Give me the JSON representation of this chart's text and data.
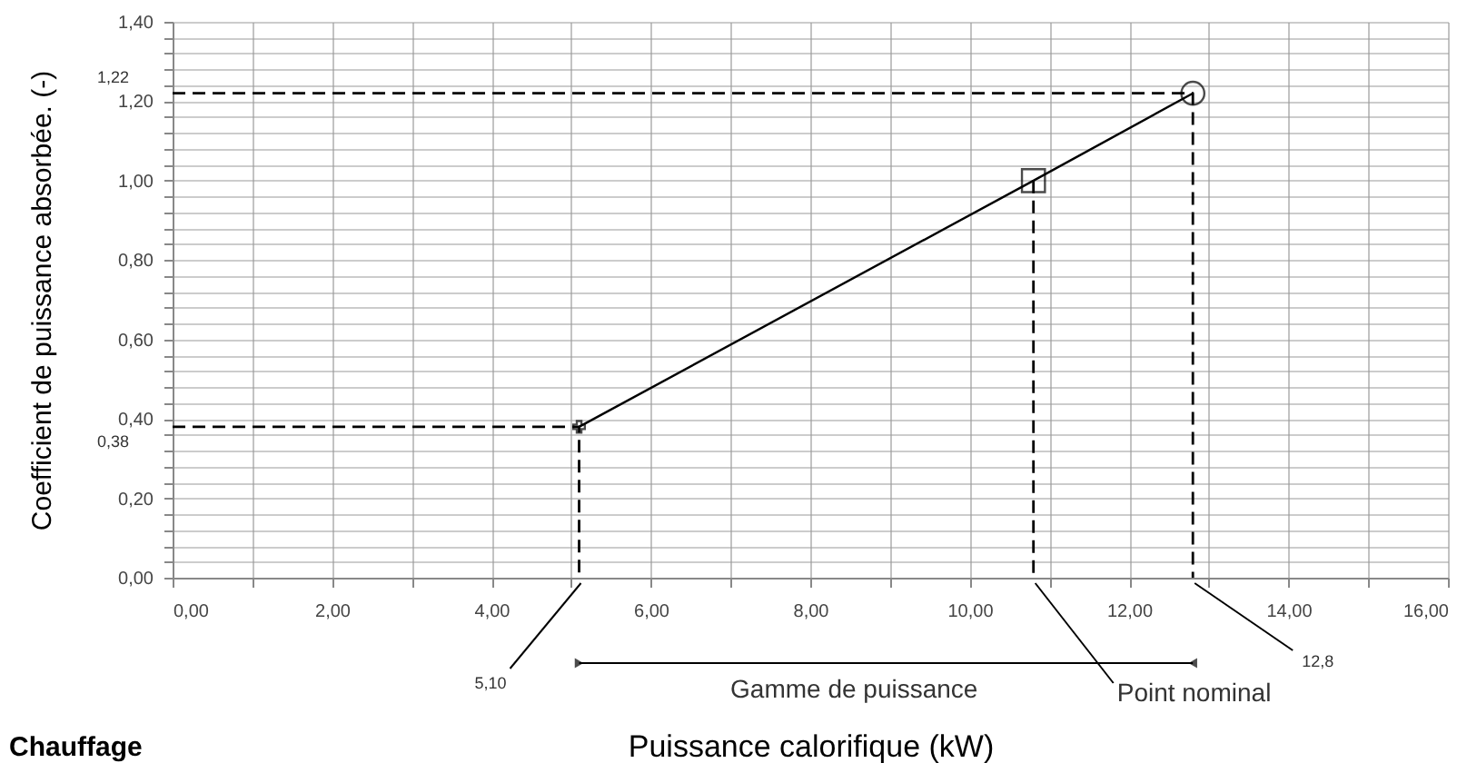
{
  "chart_data": {
    "type": "line",
    "xlabel": "Puissance calorifique (kW)",
    "ylabel": "Coefficient de puissance absorbée. (-)",
    "xlim": [
      0,
      16
    ],
    "ylim": [
      0,
      1.4
    ],
    "xticks": [
      {
        "value": 0,
        "label": "0,00"
      },
      {
        "value": 1,
        "label": null
      },
      {
        "value": 2,
        "label": "2,00"
      },
      {
        "value": 3,
        "label": null
      },
      {
        "value": 4,
        "label": "4,00"
      },
      {
        "value": 5,
        "label": null
      },
      {
        "value": 6,
        "label": "6,00"
      },
      {
        "value": 7,
        "label": null
      },
      {
        "value": 8,
        "label": "8,00"
      },
      {
        "value": 9,
        "label": null
      },
      {
        "value": 10,
        "label": "10,00"
      },
      {
        "value": 11,
        "label": null
      },
      {
        "value": 12,
        "label": "12,00"
      },
      {
        "value": 13,
        "label": null
      },
      {
        "value": 14,
        "label": "14,00"
      },
      {
        "value": 15,
        "label": null
      },
      {
        "value": 16,
        "label": "16,00"
      }
    ],
    "yticks": [
      {
        "value": 0,
        "label": "0,00"
      },
      {
        "value": 0.04,
        "label": null
      },
      {
        "value": 0.08,
        "label": null
      },
      {
        "value": 0.12,
        "label": null
      },
      {
        "value": 0.16,
        "label": null
      },
      {
        "value": 0.2,
        "label": "0,20"
      },
      {
        "value": 0.24,
        "label": null
      },
      {
        "value": 0.28,
        "label": null
      },
      {
        "value": 0.32,
        "label": null
      },
      {
        "value": 0.36,
        "label": null
      },
      {
        "value": 0.4,
        "label": "0,40"
      },
      {
        "value": 0.44,
        "label": null
      },
      {
        "value": 0.48,
        "label": null
      },
      {
        "value": 0.52,
        "label": null
      },
      {
        "value": 0.56,
        "label": null
      },
      {
        "value": 0.6,
        "label": "0,60"
      },
      {
        "value": 0.64,
        "label": null
      },
      {
        "value": 0.68,
        "label": null
      },
      {
        "value": 0.72,
        "label": null
      },
      {
        "value": 0.76,
        "label": null
      },
      {
        "value": 0.8,
        "label": "0,80"
      },
      {
        "value": 0.84,
        "label": null
      },
      {
        "value": 0.88,
        "label": null
      },
      {
        "value": 0.92,
        "label": null
      },
      {
        "value": 0.96,
        "label": null
      },
      {
        "value": 1,
        "label": "1,00"
      },
      {
        "value": 1.04,
        "label": null
      },
      {
        "value": 1.08,
        "label": null
      },
      {
        "value": 1.12,
        "label": null
      },
      {
        "value": 1.16,
        "label": null
      },
      {
        "value": 1.2,
        "label": "1,20"
      },
      {
        "value": 1.24,
        "label": null
      },
      {
        "value": 1.28,
        "label": null
      },
      {
        "value": 1.32,
        "label": null
      },
      {
        "value": 1.36,
        "label": null
      },
      {
        "value": 1.4,
        "label": "1,40"
      }
    ],
    "grid": true,
    "series": [
      {
        "color": "#000000",
        "x": [
          5.1,
          10.8,
          12.8
        ],
        "values": [
          0.38,
          1.0,
          1.22
        ]
      },
      {
        "type": "scatter",
        "marker": "cross",
        "color": "#000000",
        "x": [
          5.1
        ],
        "values": [
          0.38
        ]
      },
      {
        "type": "scatter",
        "marker": "square",
        "color": "#000000",
        "x": [
          10.8
        ],
        "values": [
          1.0
        ]
      },
      {
        "type": "scatter",
        "marker": "circle",
        "color": "#000000",
        "x": [
          12.8
        ],
        "values": [
          1.22
        ]
      },
      {
        "type": "line",
        "line_style": "dashed",
        "color": "#000000",
        "x": [
          0,
          5.1,
          5.1
        ],
        "values": [
          0.38,
          0.38,
          0
        ]
      },
      {
        "type": "line",
        "line_style": "dashed",
        "color": "#000000",
        "x": [
          0,
          12.8,
          12.8
        ],
        "values": [
          1.22,
          1.22,
          0
        ]
      },
      {
        "type": "line",
        "line_style": "dashed",
        "color": "#000000",
        "x": [
          10.8,
          10.8
        ],
        "values": [
          1.0,
          0
        ]
      }
    ],
    "annotations": [
      {
        "text": "1,22",
        "x": 0,
        "y": 1.22
      },
      {
        "text": "0,38",
        "x": 0,
        "y": 0.38
      },
      {
        "text": "5,10",
        "x": 5.1,
        "y": 0
      },
      {
        "text": "Point nominal",
        "x": 10.8,
        "y": 0
      },
      {
        "text": "12,8",
        "x": 12.8,
        "y": 0
      },
      "Gamme de puissance",
      "Chauffage"
    ]
  }
}
